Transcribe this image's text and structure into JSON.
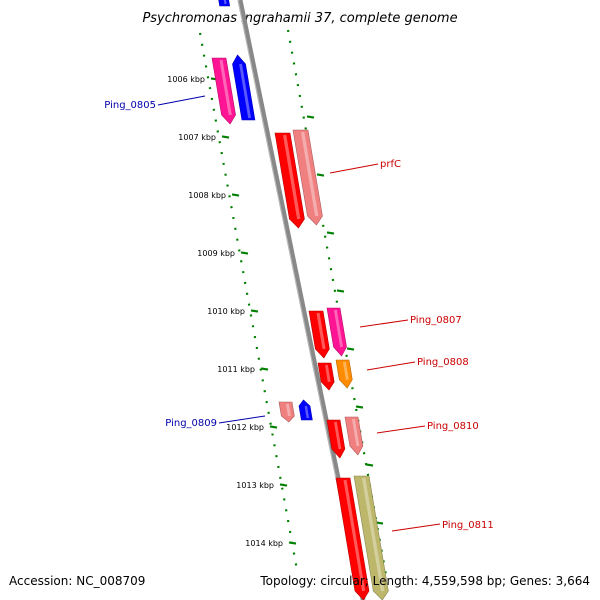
{
  "title": "Psychromonas ingrahamii 37, complete genome",
  "scale_labels": [
    "1006 kbp",
    "1007 kbp",
    "1008 kbp",
    "1009 kbp",
    "1010 kbp",
    "1011 kbp",
    "1012 kbp",
    "1013 kbp",
    "1014 kbp"
  ],
  "gene_labels": [
    {
      "text": "Ping_0805",
      "color": "#0000aa"
    },
    {
      "text": "prfC",
      "color": "#cc0000"
    },
    {
      "text": "Ping_0807",
      "color": "#cc0000"
    },
    {
      "text": "Ping_0808",
      "color": "#cc0000"
    },
    {
      "text": "Ping_0809",
      "color": "#0000aa"
    },
    {
      "text": "Ping_0810",
      "color": "#cc0000"
    },
    {
      "text": "Ping_0811",
      "color": "#cc0000"
    }
  ],
  "colors": {
    "backbone": "#888888",
    "scale_dots": "#008000",
    "red": "#ff0000",
    "salmon": "#f08080",
    "magenta": "#ff1493",
    "blue": "#0000ff",
    "orange": "#ff8c00",
    "olive": "#bdb76b"
  },
  "footer": {
    "accession": "Accession: NC_008709",
    "stats": "Topology: circular; Length: 4,559,598 bp; Genes: 3,664"
  }
}
